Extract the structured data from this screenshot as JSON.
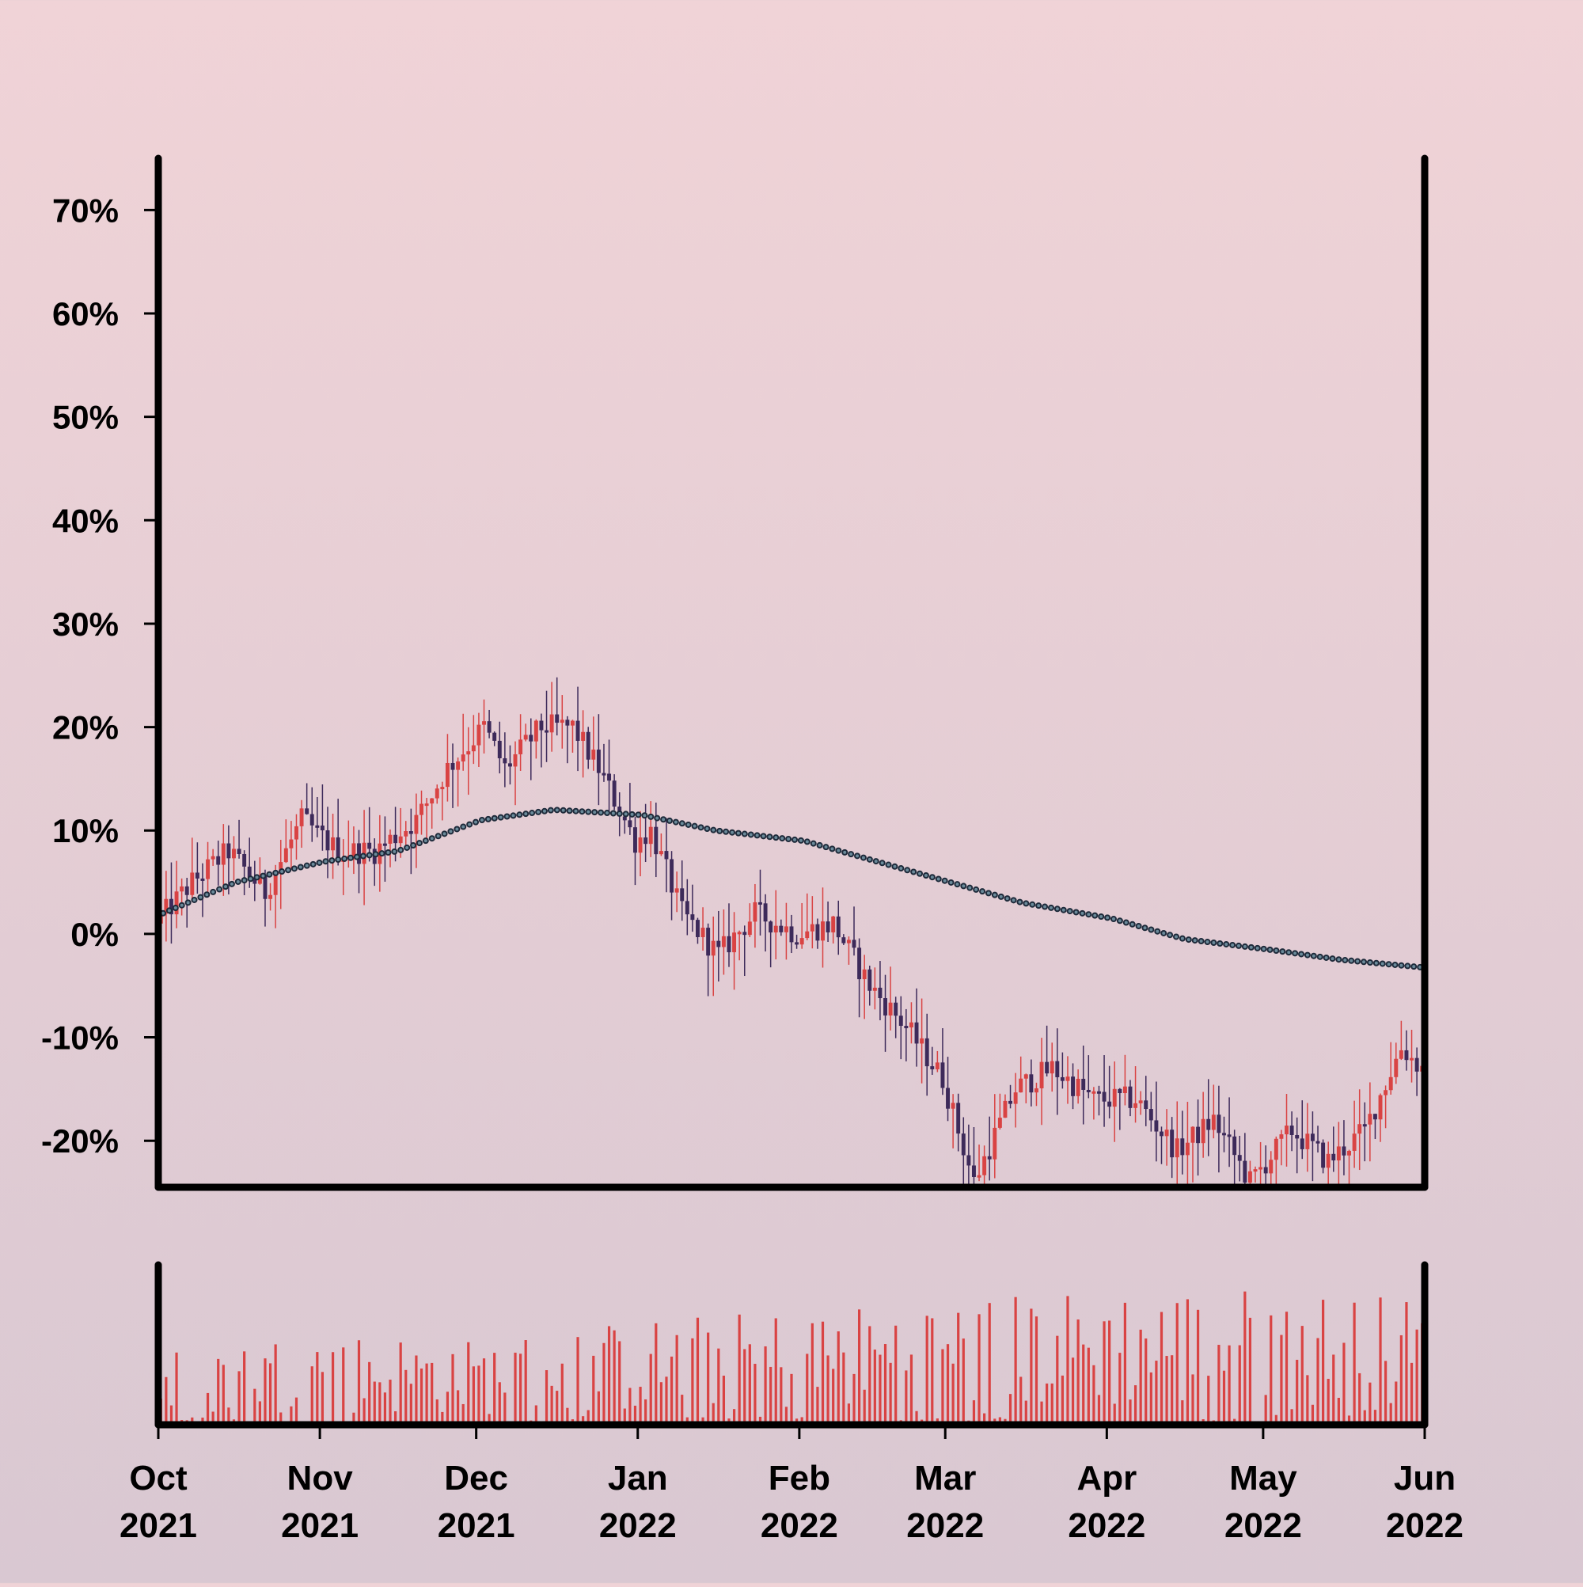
{
  "chart_data": {
    "type": "candlestick",
    "title": "",
    "xlabel": "",
    "ylabel": "",
    "grid": false,
    "x_range": [
      "2021-10-01",
      "2022-06-01"
    ],
    "y_range": [
      -24.5,
      75
    ],
    "y_ticks": [
      70,
      60,
      50,
      40,
      30,
      20,
      10,
      0,
      -10,
      -20
    ],
    "y_tick_labels": [
      "70%",
      "60%",
      "50%",
      "40%",
      "30%",
      "20%",
      "10%",
      "0%",
      "-10%",
      "-20%"
    ],
    "x_ticks": [
      "2021-10-01",
      "2021-11-01",
      "2021-12-01",
      "2022-01-01",
      "2022-02-01",
      "2022-03-01",
      "2022-04-01",
      "2022-05-01",
      "2022-06-01"
    ],
    "x_tick_labels": [
      [
        "Oct",
        "2021"
      ],
      [
        "Nov",
        "2021"
      ],
      [
        "Dec",
        "2021"
      ],
      [
        "Jan",
        "2022"
      ],
      [
        "Feb",
        "2022"
      ],
      [
        "Mar",
        "2022"
      ],
      [
        "Apr",
        "2022"
      ],
      [
        "May",
        "2022"
      ],
      [
        "Jun",
        "2022"
      ]
    ],
    "price_series": {
      "unit": "%",
      "up_color": "#d94343",
      "down_color": "#3d2a5a",
      "keypoints": [
        [
          "2021-10-01",
          1
        ],
        [
          "2021-10-08",
          5
        ],
        [
          "2021-10-15",
          8
        ],
        [
          "2021-10-22",
          4
        ],
        [
          "2021-10-29",
          11
        ],
        [
          "2021-11-05",
          8
        ],
        [
          "2021-11-12",
          8
        ],
        [
          "2021-11-20",
          11
        ],
        [
          "2021-11-26",
          16
        ],
        [
          "2021-12-03",
          20
        ],
        [
          "2021-12-07",
          16
        ],
        [
          "2021-12-14",
          20
        ],
        [
          "2021-12-20",
          20
        ],
        [
          "2021-12-25",
          16
        ],
        [
          "2022-01-01",
          9
        ],
        [
          "2022-01-04",
          10
        ],
        [
          "2022-01-10",
          2
        ],
        [
          "2022-01-17",
          -2
        ],
        [
          "2022-01-24",
          2
        ],
        [
          "2022-02-01",
          0
        ],
        [
          "2022-02-08",
          1
        ],
        [
          "2022-02-15",
          -5
        ],
        [
          "2022-02-22",
          -9
        ],
        [
          "2022-03-01",
          -14
        ],
        [
          "2022-03-07",
          -24
        ],
        [
          "2022-03-15",
          -15
        ],
        [
          "2022-03-22",
          -13
        ],
        [
          "2022-03-30",
          -16
        ],
        [
          "2022-04-07",
          -16
        ],
        [
          "2022-04-15",
          -21
        ],
        [
          "2022-04-22",
          -18
        ],
        [
          "2022-04-29",
          -24
        ],
        [
          "2022-05-07",
          -19
        ],
        [
          "2022-05-14",
          -22
        ],
        [
          "2022-05-21",
          -19
        ],
        [
          "2022-05-28",
          -11
        ],
        [
          "2022-06-01",
          -13
        ]
      ]
    },
    "moving_average": {
      "style": "dotted",
      "color": "#1e2a3a",
      "keypoints": [
        [
          "2021-10-01",
          2
        ],
        [
          "2021-10-15",
          5
        ],
        [
          "2021-11-01",
          7
        ],
        [
          "2021-11-15",
          8
        ],
        [
          "2021-12-01",
          11
        ],
        [
          "2021-12-15",
          12
        ],
        [
          "2022-01-01",
          11.5
        ],
        [
          "2022-01-15",
          10
        ],
        [
          "2022-02-01",
          9
        ],
        [
          "2022-02-15",
          7
        ],
        [
          "2022-03-01",
          5
        ],
        [
          "2022-03-15",
          3
        ],
        [
          "2022-04-01",
          1.5
        ],
        [
          "2022-04-15",
          -0.5
        ],
        [
          "2022-05-01",
          -1.5
        ],
        [
          "2022-05-15",
          -2.5
        ],
        [
          "2022-06-01",
          -3.3
        ]
      ]
    },
    "volume_series": {
      "color": "#d94343",
      "max_value": 100,
      "keypoints": [
        [
          "2021-10-01",
          35
        ],
        [
          "2021-11-01",
          45
        ],
        [
          "2021-12-01",
          40
        ],
        [
          "2022-01-01",
          50
        ],
        [
          "2022-02-01",
          55
        ],
        [
          "2022-03-01",
          60
        ],
        [
          "2022-04-01",
          65
        ],
        [
          "2022-05-01",
          65
        ],
        [
          "2022-06-01",
          60
        ]
      ]
    }
  }
}
